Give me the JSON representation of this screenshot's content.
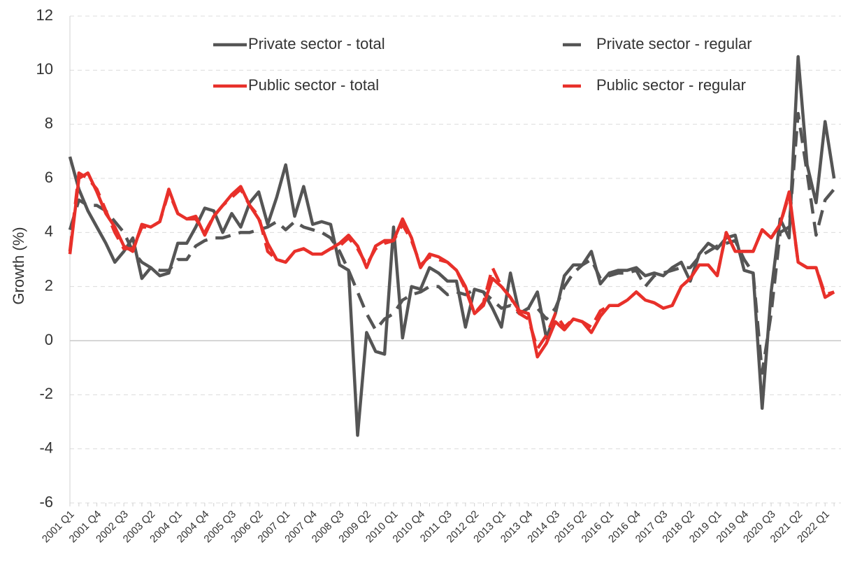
{
  "chart_data": {
    "type": "line",
    "y_label": "Growth (%)",
    "categories": [
      "2001 Q1",
      null,
      null,
      "2001 Q4",
      null,
      null,
      "2002 Q3",
      null,
      null,
      "2003 Q2",
      null,
      null,
      "2004 Q1",
      null,
      null,
      "2004 Q4",
      null,
      null,
      "2005 Q3",
      null,
      null,
      "2006 Q2",
      null,
      null,
      "2007 Q1",
      null,
      null,
      "2007 Q4",
      null,
      null,
      "2008 Q3",
      null,
      null,
      "2009 Q2",
      null,
      null,
      "2010 Q1",
      null,
      null,
      "2010 Q4",
      null,
      null,
      "2011 Q3",
      null,
      null,
      "2012 Q2",
      null,
      null,
      "2013 Q1",
      null,
      null,
      "2013 Q4",
      null,
      null,
      "2014 Q3",
      null,
      null,
      "2015 Q2",
      null,
      null,
      "2016 Q1",
      null,
      null,
      "2016 Q4",
      null,
      null,
      "2017 Q3",
      null,
      null,
      "2018 Q2",
      null,
      null,
      "2019 Q1",
      null,
      null,
      "2019 Q4",
      null,
      null,
      "2020 Q3",
      null,
      null,
      "2021 Q2",
      null,
      null,
      "2022 Q1",
      null
    ],
    "series": [
      {
        "name": "Private sector - total",
        "color": "#555555",
        "dash": false,
        "values": [
          6.8,
          5.6,
          4.8,
          4.2,
          3.6,
          2.9,
          3.3,
          3.8,
          2.3,
          2.7,
          2.4,
          2.5,
          3.6,
          3.6,
          4.2,
          4.9,
          4.8,
          4.0,
          4.7,
          4.2,
          5.1,
          5.5,
          4.3,
          5.3,
          6.5,
          4.6,
          5.7,
          4.3,
          4.4,
          4.3,
          2.8,
          2.6,
          -3.5,
          0.3,
          -0.4,
          -0.5,
          4.2,
          0.1,
          2.0,
          1.9,
          2.7,
          2.5,
          2.2,
          2.2,
          0.5,
          1.9,
          1.8,
          1.2,
          0.5,
          2.5,
          1.0,
          1.2,
          1.8,
          0.1,
          1.0,
          2.4,
          2.8,
          2.8,
          3.3,
          2.1,
          2.5,
          2.6,
          2.6,
          2.7,
          2.4,
          2.5,
          2.4,
          2.7,
          2.9,
          2.2,
          3.2,
          3.6,
          3.4,
          3.8,
          3.9,
          2.6,
          2.5,
          -2.5,
          1.8,
          4.5,
          3.8,
          10.5,
          6.5,
          5.1,
          8.1,
          6.0
        ]
      },
      {
        "name": "Private sector - regular",
        "color": "#555555",
        "dash": true,
        "values": [
          4.1,
          5.2,
          5.0,
          5.0,
          4.8,
          4.4,
          4.0,
          3.3,
          2.9,
          2.7,
          2.6,
          2.6,
          3.0,
          3.0,
          3.5,
          3.7,
          3.8,
          3.8,
          3.9,
          4.0,
          4.0,
          4.1,
          4.2,
          4.4,
          4.1,
          4.4,
          4.2,
          4.1,
          4.0,
          3.8,
          3.3,
          2.6,
          1.8,
          1.0,
          0.4,
          0.8,
          1.0,
          1.5,
          1.7,
          1.8,
          2.0,
          2.0,
          1.7,
          1.8,
          1.7,
          1.9,
          1.8,
          1.5,
          1.2,
          1.3,
          1.0,
          1.2,
          1.2,
          0.8,
          1.2,
          2.0,
          2.5,
          2.8,
          3.0,
          2.3,
          2.4,
          2.5,
          2.5,
          2.6,
          2.0,
          2.4,
          2.5,
          2.6,
          2.7,
          2.7,
          3.1,
          3.3,
          3.5,
          3.6,
          3.7,
          3.0,
          2.5,
          -1.2,
          1.0,
          4.0,
          4.2,
          8.4,
          6.2,
          3.9,
          5.2,
          5.6
        ]
      },
      {
        "name": "Public sector - total",
        "color": "#e8302a",
        "dash": false,
        "values": [
          3.2,
          6.0,
          6.2,
          5.5,
          4.7,
          4.2,
          3.5,
          3.3,
          4.3,
          4.2,
          4.4,
          5.6,
          4.7,
          4.5,
          4.6,
          3.9,
          4.6,
          5.0,
          5.4,
          5.7,
          5.0,
          4.5,
          3.6,
          3.0,
          2.9,
          3.3,
          3.4,
          3.2,
          3.2,
          3.4,
          3.6,
          3.9,
          3.5,
          2.7,
          3.5,
          3.7,
          3.7,
          4.5,
          3.8,
          2.7,
          3.2,
          3.1,
          2.9,
          2.6,
          2.0,
          1.0,
          1.3,
          2.3,
          2.0,
          1.6,
          1.1,
          1.0,
          -0.6,
          -0.1,
          0.7,
          0.4,
          0.8,
          0.7,
          0.3,
          0.9,
          1.3,
          1.3,
          1.5,
          1.8,
          1.5,
          1.4,
          1.2,
          1.3,
          2.0,
          2.3,
          2.8,
          2.8,
          2.4,
          4.0,
          3.3,
          3.3,
          3.3,
          4.1,
          3.8,
          4.3,
          5.5,
          2.9,
          2.7,
          2.7,
          1.6,
          1.8
        ]
      },
      {
        "name": "Public sector - regular",
        "color": "#e8302a",
        "dash": true,
        "values": [
          3.3,
          6.2,
          6.0,
          5.6,
          4.8,
          4.0,
          3.4,
          3.4,
          4.2,
          4.2,
          4.4,
          5.5,
          4.7,
          4.5,
          4.5,
          4.0,
          4.6,
          5.0,
          5.3,
          5.6,
          5.0,
          4.6,
          3.3,
          3.0,
          2.9,
          3.3,
          3.4,
          3.2,
          3.2,
          3.4,
          3.5,
          3.8,
          3.4,
          2.8,
          3.4,
          3.6,
          3.7,
          4.3,
          3.7,
          2.8,
          3.1,
          3.0,
          2.9,
          2.6,
          1.9,
          1.0,
          1.4,
          2.7,
          2.0,
          1.6,
          1.0,
          0.8,
          -0.3,
          0.2,
          1.0,
          0.5,
          0.8,
          0.7,
          0.5,
          1.1,
          1.3,
          1.3,
          1.5,
          1.8,
          1.5,
          1.4,
          1.2,
          1.3,
          2.0,
          2.3,
          2.8,
          2.8,
          2.4,
          4.0,
          3.3,
          3.3,
          3.3,
          4.1,
          3.8,
          4.3,
          5.4,
          2.9,
          2.7,
          2.7,
          1.7,
          1.8
        ]
      }
    ],
    "ylim": [
      -6,
      12
    ],
    "yticks": [
      -6,
      -4,
      -2,
      0,
      2,
      4,
      6,
      8,
      10,
      12
    ],
    "grid": true,
    "legend": "top"
  }
}
